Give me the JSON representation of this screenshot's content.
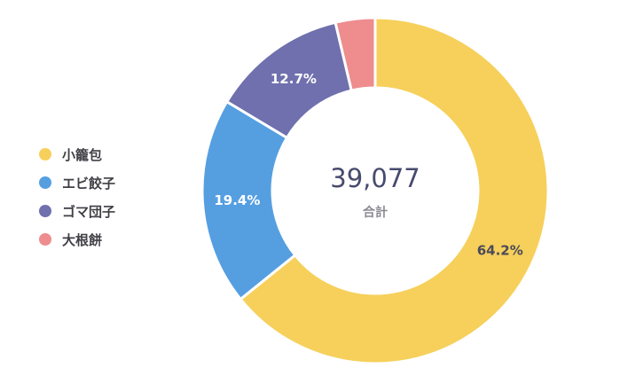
{
  "chart_data": {
    "type": "pie",
    "variant": "donut",
    "categories": [
      "小籠包",
      "エビ餃子",
      "ゴマ団子",
      "大根餅"
    ],
    "values": [
      64.2,
      19.4,
      12.7,
      3.7
    ],
    "labels": [
      "64.2%",
      "19.4%",
      "12.7%",
      ""
    ],
    "colors": [
      "#f6d05b",
      "#559fe1",
      "#6f70ad",
      "#ee8c8e"
    ],
    "label_colors": [
      "#4a4a5a",
      "#ffffff",
      "#ffffff",
      "#ffffff"
    ],
    "center_value": "39,077",
    "center_label": "合計",
    "legend_position": "left"
  }
}
